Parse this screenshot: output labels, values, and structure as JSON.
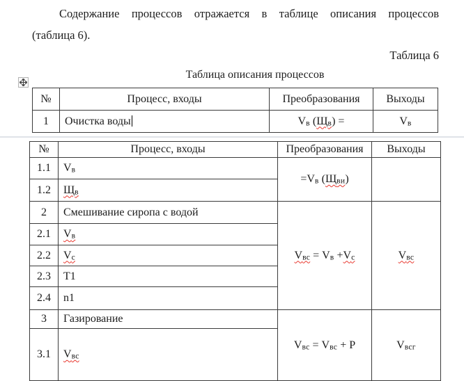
{
  "doc": {
    "paragraph_line1": "Содержание процессов отражается в таблице описания процессов",
    "paragraph_line2": "(таблица 6).",
    "table_number_caption": "Таблица 6",
    "table_title": "Таблица описания процессов"
  },
  "icons": {
    "table_move_handle": "four-way-move-arrow"
  },
  "table1": {
    "headers": [
      "№",
      "Процесс, входы",
      "Преобразования",
      "Выходы"
    ],
    "row": {
      "num": "1",
      "process": "Очистка воды",
      "formula_pre": "Vв (",
      "formula_err": "Щв",
      "formula_post": ") =",
      "output": "Vв"
    }
  },
  "table2": {
    "headers": [
      "№",
      "Процесс, входы",
      "Преобразования",
      "Выходы"
    ],
    "rows": {
      "r11": {
        "num": "1.1",
        "input": "Vв",
        "formula_pre": "=Vв (",
        "formula_err": "Щви",
        "formula_post": ")"
      },
      "r12": {
        "num": "1.2",
        "input": "Щв"
      },
      "r2": {
        "num": "2",
        "input": "Смешивание сиропа с водой",
        "formula_err1": "Vвс",
        "formula_mid": " = Vв +",
        "formula_err2": "Vс",
        "output": "Vвс"
      },
      "r21": {
        "num": "2.1",
        "input": "Vв"
      },
      "r22": {
        "num": "2.2",
        "input": "Vс"
      },
      "r23": {
        "num": "2.3",
        "input": "Т1"
      },
      "r24": {
        "num": "2.4",
        "input": "n1"
      },
      "r3": {
        "num": "3",
        "input": "Газирование",
        "formula": "Vвс = Vвс + Р",
        "output": "Vвсг"
      },
      "r31": {
        "num": "3.1",
        "input": "Vвс"
      }
    }
  }
}
